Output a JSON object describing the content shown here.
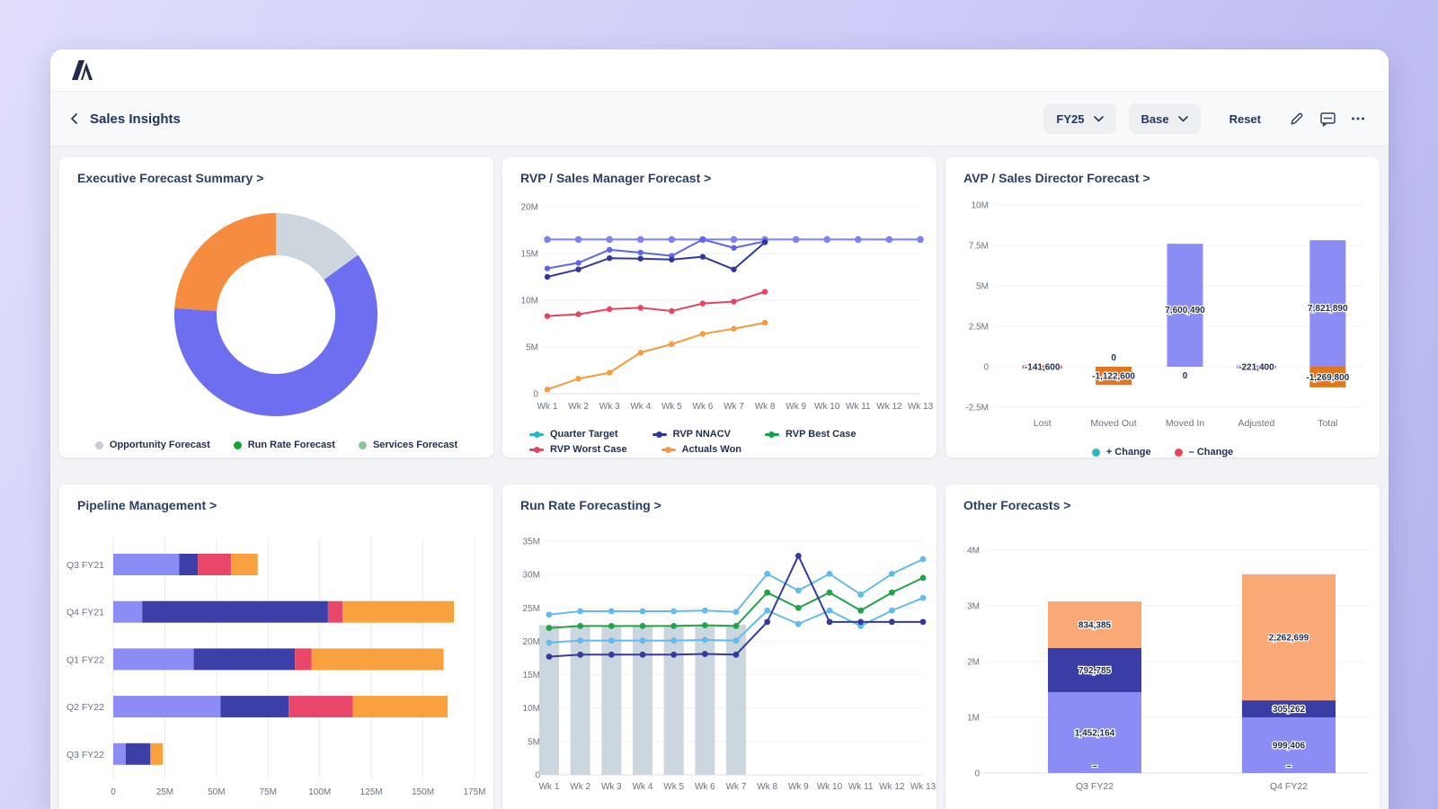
{
  "header": {
    "title": "Sales Insights",
    "back_icon": "chevron-left",
    "period_selector": "FY25",
    "scenario_selector": "Base",
    "reset_label": "Reset",
    "icons": [
      "edit-icon",
      "comment-icon",
      "more-icon"
    ],
    "accent_text_color": "#24365c"
  },
  "cards": [
    {
      "title": "Executive Forecast Summary >"
    },
    {
      "title": "RVP / Sales Manager Forecast >"
    },
    {
      "title": "AVP / Sales Director Forecast >"
    },
    {
      "title": "Pipeline Management >"
    },
    {
      "title": "Run Rate Forecasting >"
    },
    {
      "title": "Other Forecasts >"
    }
  ],
  "chart_data": [
    {
      "type": "pie",
      "donut": true,
      "title": "Executive Forecast Summary",
      "slices": [
        {
          "label": "Opportunity Forecast",
          "pct": 15,
          "color": "#ced6dd"
        },
        {
          "label": "Run Rate Forecast",
          "pct": 61,
          "color": "#6d6ff0"
        },
        {
          "label": "Services Forecast",
          "pct": 24,
          "color": "#f68c3f"
        }
      ],
      "legend": [
        {
          "label": "Opportunity Forecast",
          "color": "#c5ced6",
          "marker": "dot"
        },
        {
          "label": "Run Rate Forecast",
          "color": "#12a33c",
          "marker": "dot"
        },
        {
          "label": "Services Forecast",
          "color": "#8ac49d",
          "marker": "dot"
        }
      ]
    },
    {
      "type": "line",
      "title": "RVP / Sales Manager Forecast",
      "x": [
        "Wk 1",
        "Wk 2",
        "Wk 3",
        "Wk 4",
        "Wk 5",
        "Wk 6",
        "Wk 7",
        "Wk 8",
        "Wk 9",
        "Wk 10",
        "Wk 11",
        "Wk 12",
        "Wk 13"
      ],
      "ylim": [
        0,
        20
      ],
      "yticks": [
        {
          "v": 20,
          "t": "20M"
        },
        {
          "v": 15,
          "t": "15M"
        },
        {
          "v": 10,
          "t": "10M"
        },
        {
          "v": 5,
          "t": "5M"
        },
        {
          "v": 0,
          "t": "0"
        }
      ],
      "series": [
        {
          "name": "Quarter Target",
          "color": "#7d81f2",
          "values": [
            16.5,
            16.5,
            16.5,
            16.5,
            16.5,
            16.5,
            16.5,
            16.5,
            16.5,
            16.5,
            16.5,
            16.5,
            16.5
          ]
        },
        {
          "name": "RVP Best Case",
          "color": "#5f66ee",
          "values": [
            13.4,
            14.0,
            15.4,
            15.1,
            14.75,
            16.5,
            15.6,
            16.3,
            null,
            null,
            null,
            null,
            null
          ]
        },
        {
          "name": "RVP NNACV",
          "color": "#30399b",
          "values": [
            12.5,
            13.3,
            14.5,
            14.45,
            14.35,
            14.65,
            13.3,
            16.2,
            null,
            null,
            null,
            null,
            null
          ]
        },
        {
          "name": "RVP Worst Case",
          "color": "#e8445f",
          "values": [
            8.3,
            8.5,
            9.05,
            9.2,
            8.85,
            9.65,
            9.85,
            10.9,
            null,
            null,
            null,
            null,
            null
          ]
        },
        {
          "name": "Actuals Won",
          "color": "#f79b3e",
          "values": [
            0.45,
            1.6,
            2.25,
            4.4,
            5.3,
            6.4,
            6.95,
            7.6,
            null,
            null,
            null,
            null,
            null
          ]
        }
      ],
      "legend": [
        {
          "label": "Quarter Target",
          "color": "#2ab5c9",
          "marker": "line-dot"
        },
        {
          "label": "RVP NNACV",
          "color": "#30399b",
          "marker": "line-dot"
        },
        {
          "label": "RVP Best Case",
          "color": "#17a349",
          "marker": "line-dot"
        },
        {
          "label": "RVP Worst Case",
          "color": "#e8445f",
          "marker": "line-dot"
        },
        {
          "label": "Actuals Won",
          "color": "#f79b3e",
          "marker": "line-dot"
        }
      ]
    },
    {
      "type": "waterfall",
      "title": "AVP / Sales Director Forecast",
      "ylim": [
        -2500000,
        10000000
      ],
      "yticks": [
        {
          "v": 10,
          "t": "10M"
        },
        {
          "v": 7.5,
          "t": "7.5M"
        },
        {
          "v": 5,
          "t": "5M"
        },
        {
          "v": 2.5,
          "t": "2.5M"
        },
        {
          "v": 0,
          "t": "0"
        },
        {
          "v": -2.5,
          "t": "-2.5M"
        }
      ],
      "pos_color": "#8b8df5",
      "neg_color": "#e2761c",
      "items": [
        {
          "category": "Lost",
          "pos": 0,
          "neg": 141600,
          "dash": "#e25048",
          "labels": [
            {
              "text": "-141,600",
              "at": "zero"
            }
          ]
        },
        {
          "category": "Moved Out",
          "pos": 0,
          "neg": 1122600,
          "labels": [
            {
              "text": "0",
              "at": "above"
            },
            {
              "text": "-1,122,600",
              "at": "negmid"
            }
          ]
        },
        {
          "category": "Moved In",
          "pos": 7600490,
          "neg": 0,
          "labels": [
            {
              "text": "7,600,490",
              "at": "posmid"
            },
            {
              "text": "0",
              "at": "below"
            }
          ]
        },
        {
          "category": "Adjusted",
          "pos": 0,
          "neg": 221400,
          "dash": "#8b8df5",
          "labels": [
            {
              "text": "-221,400",
              "at": "zero"
            }
          ]
        },
        {
          "category": "Total",
          "pos": 7821890,
          "neg": 1269800,
          "labels": [
            {
              "text": "7,821,890",
              "at": "posmid"
            },
            {
              "text": "-1,269,800",
              "at": "negmid"
            }
          ]
        }
      ],
      "legend": [
        {
          "label": "+ Change",
          "color": "#29b7c9",
          "marker": "dot"
        },
        {
          "label": "– Change",
          "color": "#e8445f",
          "marker": "dot"
        }
      ]
    },
    {
      "type": "hbar_stacked",
      "title": "Pipeline Management",
      "categories": [
        "Q3 FY21",
        "Q4 FY21",
        "Q1 FY22",
        "Q2 FY22",
        "Q3 FY22"
      ],
      "unit": "M",
      "xlim": [
        0,
        175
      ],
      "xticks": [
        {
          "v": 0,
          "t": "0"
        },
        {
          "v": 25,
          "t": "25M"
        },
        {
          "v": 50,
          "t": "50M"
        },
        {
          "v": 75,
          "t": "75M"
        },
        {
          "v": 100,
          "t": "100M"
        },
        {
          "v": 125,
          "t": "125M"
        },
        {
          "v": 150,
          "t": "150M"
        },
        {
          "v": 175,
          "t": "175M"
        }
      ],
      "series": [
        {
          "name": "segment-periwinkle",
          "color": "#8b8df5",
          "values": [
            32,
            14,
            39,
            52,
            6
          ]
        },
        {
          "name": "segment-indigo",
          "color": "#3c3fa8",
          "values": [
            9,
            90,
            49,
            33,
            12
          ]
        },
        {
          "name": "segment-red",
          "color": "#e8476a",
          "values": [
            16,
            7,
            8,
            31,
            0
          ]
        },
        {
          "name": "segment-orange",
          "color": "#f9a03f",
          "values": [
            13,
            54,
            64,
            46,
            6
          ]
        }
      ]
    },
    {
      "type": "line_bar",
      "title": "Run Rate Forecasting",
      "x": [
        "Wk 1",
        "Wk 2",
        "Wk 3",
        "Wk 4",
        "Wk 5",
        "Wk 6",
        "Wk 7",
        "Wk 8",
        "Wk 9",
        "Wk 10",
        "Wk 11",
        "Wk 12",
        "Wk 13"
      ],
      "ylim": [
        0,
        35
      ],
      "yticks": [
        {
          "v": 35,
          "t": "35M"
        },
        {
          "v": 30,
          "t": "30M"
        },
        {
          "v": 25,
          "t": "25M"
        },
        {
          "v": 20,
          "t": "20M"
        },
        {
          "v": 15,
          "t": "15M"
        },
        {
          "v": 10,
          "t": "10M"
        },
        {
          "v": 5,
          "t": "5M"
        },
        {
          "v": 0,
          "t": "0"
        }
      ],
      "bars": {
        "color": "#ccd6de",
        "values": [
          22.4,
          22.4,
          22.4,
          22.4,
          22.4,
          22.4,
          22.5,
          null,
          null,
          null,
          null,
          null,
          null
        ]
      },
      "series": [
        {
          "name": "upper-sky",
          "color": "#62bbec",
          "values": [
            24.0,
            24.5,
            24.5,
            24.5,
            24.5,
            24.6,
            24.4,
            30.1,
            27.6,
            30.1,
            27.0,
            30.1,
            32.3
          ]
        },
        {
          "name": "green",
          "color": "#23a24c",
          "values": [
            22.0,
            22.3,
            22.3,
            22.3,
            22.3,
            22.4,
            22.3,
            27.3,
            25.0,
            27.3,
            24.6,
            27.3,
            29.5
          ]
        },
        {
          "name": "lower-sky",
          "color": "#62bbec",
          "values": [
            19.8,
            20.1,
            20.1,
            20.1,
            20.1,
            20.2,
            20.1,
            24.6,
            22.6,
            24.6,
            22.3,
            24.6,
            26.5
          ]
        },
        {
          "name": "navy",
          "color": "#333c9e",
          "values": [
            17.7,
            18.0,
            18.0,
            18.0,
            18.0,
            18.1,
            18.0,
            22.9,
            32.8,
            22.9,
            22.9,
            22.9,
            22.9
          ]
        }
      ]
    },
    {
      "type": "vbar_stacked",
      "title": "Other Forecasts",
      "categories": [
        "Q3 FY22",
        "Q4 FY22"
      ],
      "ylim": [
        0,
        4000000
      ],
      "yticks": [
        {
          "v": 4,
          "t": "4M"
        },
        {
          "v": 3,
          "t": "3M"
        },
        {
          "v": 2,
          "t": "2M"
        },
        {
          "v": 1,
          "t": "1M"
        },
        {
          "v": 0,
          "t": "0"
        }
      ],
      "series": [
        {
          "name": "stack-periwinkle",
          "color": "#8b8df5",
          "values": [
            1452164,
            999406
          ],
          "labels": [
            "1,452,164",
            "999,406"
          ]
        },
        {
          "name": "stack-indigo",
          "color": "#3a3da6",
          "values": [
            792785,
            305262
          ],
          "labels": [
            "792,785",
            "305,262"
          ]
        },
        {
          "name": "stack-orange",
          "color": "#f9a876",
          "values": [
            834385,
            2262699
          ],
          "labels": [
            "834,385",
            "2,262,699"
          ]
        }
      ],
      "base_labels": [
        "–",
        "–"
      ]
    }
  ]
}
